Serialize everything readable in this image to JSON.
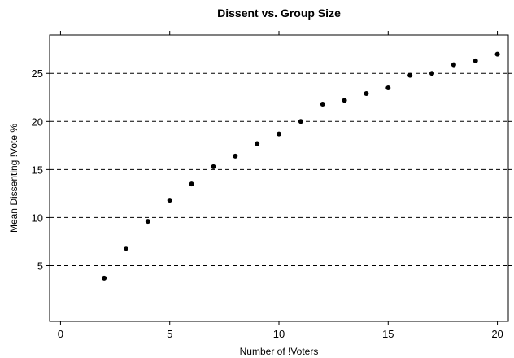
{
  "chart_data": {
    "type": "scatter",
    "title": "Dissent vs. Group Size",
    "xlabel": "Number of !Voters",
    "ylabel": "Mean Dissenting !Vote %",
    "xlim": [
      -0.5,
      20.5
    ],
    "ylim": [
      -0.8,
      29
    ],
    "xticks": [
      0,
      5,
      10,
      15,
      20
    ],
    "yticks": [
      5,
      10,
      15,
      20,
      25
    ],
    "grid": "horizontal dashed at y ticks",
    "legend": "none",
    "x": [
      2,
      3,
      4,
      5,
      6,
      7,
      8,
      9,
      10,
      11,
      12,
      13,
      14,
      15,
      16,
      17,
      18,
      19,
      20
    ],
    "y": [
      3.7,
      6.8,
      9.6,
      11.8,
      13.5,
      15.3,
      16.4,
      17.7,
      18.7,
      20.0,
      21.8,
      22.2,
      22.9,
      23.5,
      24.8,
      25.0,
      25.9,
      26.3,
      27.0
    ],
    "marker_color": "#000000"
  }
}
